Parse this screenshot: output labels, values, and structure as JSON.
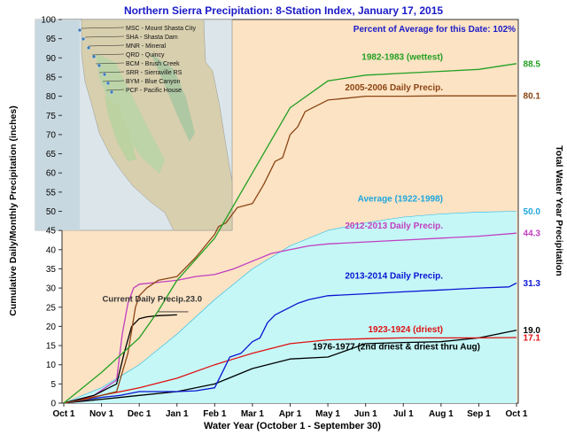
{
  "chart_data": {
    "type": "line",
    "title": "Northern Sierra Precipitation: 8-Station Index, January 17, 2015",
    "percent_label": "Percent of Average for this Date: 102%",
    "xlabel": "Water Year (October 1 - September 30)",
    "ylabel": "Cumulative Daily/Monthly Precipitation (inches)",
    "ylabel_right": "Total Water Year Precipitation",
    "ylim": [
      0,
      100
    ],
    "yticks": [
      0,
      5,
      10,
      15,
      20,
      25,
      30,
      35,
      40,
      45,
      50,
      55,
      60,
      65,
      70,
      75,
      80,
      85,
      90,
      95,
      100
    ],
    "x_ticks": [
      "Oct 1",
      "Nov 1",
      "Dec 1",
      "Jan 1",
      "Feb 1",
      "Mar 1",
      "Apr 1",
      "May 1",
      "Jun 1",
      "Jul 1",
      "Aug 1",
      "Sep 1",
      "Oct 1"
    ],
    "grid": false,
    "colors": {
      "plot_bg": "#fce3c4",
      "average_fill": "#c5f7f7"
    },
    "map_legend": [
      "MSC - Mount Shasta City",
      "SHA - Shasta Dam",
      "MNR - Mineral",
      "QRD - Quincy",
      "BCM - Brush Creek",
      "SRR - Sierraville RS",
      "BYM - Blue Canyon",
      "PCF - Pacific House"
    ],
    "series": [
      {
        "key": "wettest",
        "name": "1982-1983 (wettest)",
        "total": "88.5",
        "color": "#22a022",
        "points": [
          [
            0,
            0
          ],
          [
            1,
            8
          ],
          [
            2,
            17
          ],
          [
            2.5,
            24
          ],
          [
            3,
            32
          ],
          [
            4,
            43
          ],
          [
            5,
            60
          ],
          [
            6,
            77
          ],
          [
            7,
            84
          ],
          [
            8,
            85.5
          ],
          [
            9,
            86
          ],
          [
            10,
            86.5
          ],
          [
            11,
            87
          ],
          [
            12,
            88.5
          ]
        ]
      },
      {
        "key": "y2005",
        "name": "2005-2006 Daily Precip.",
        "total": "80.1",
        "color": "#8b4513",
        "points": [
          [
            0,
            0
          ],
          [
            0.6,
            1
          ],
          [
            1,
            2
          ],
          [
            1.4,
            3
          ],
          [
            1.7,
            13
          ],
          [
            1.9,
            25
          ],
          [
            2,
            28
          ],
          [
            2.2,
            30
          ],
          [
            2.5,
            32
          ],
          [
            3,
            33
          ],
          [
            3.5,
            38
          ],
          [
            4,
            44
          ],
          [
            4.1,
            46
          ],
          [
            4.3,
            47
          ],
          [
            4.6,
            51
          ],
          [
            5,
            52
          ],
          [
            5.3,
            57
          ],
          [
            5.6,
            63
          ],
          [
            5.8,
            64
          ],
          [
            6,
            70
          ],
          [
            6.2,
            72
          ],
          [
            6.4,
            76
          ],
          [
            6.6,
            77
          ],
          [
            6.8,
            78
          ],
          [
            7,
            79
          ],
          [
            7.5,
            79.5
          ],
          [
            8,
            80
          ],
          [
            9,
            80
          ],
          [
            10,
            80.1
          ],
          [
            12,
            80.1
          ]
        ]
      },
      {
        "key": "average",
        "name": "Average (1922-1998)",
        "total": "50.0",
        "color": "#22b8e6",
        "points": [
          [
            0,
            0
          ],
          [
            1,
            4
          ],
          [
            2,
            10
          ],
          [
            3,
            18
          ],
          [
            4,
            27
          ],
          [
            5,
            35
          ],
          [
            6,
            41
          ],
          [
            7,
            45
          ],
          [
            8,
            47
          ],
          [
            9,
            48.5
          ],
          [
            10,
            49.3
          ],
          [
            11,
            49.8
          ],
          [
            12,
            50
          ]
        ]
      },
      {
        "key": "y2012",
        "name": "2012-2013 Daily Precip.",
        "total": "44.3",
        "color": "#c040c0",
        "points": [
          [
            0,
            0
          ],
          [
            0.8,
            2
          ],
          [
            1.1,
            4
          ],
          [
            1.4,
            6
          ],
          [
            1.55,
            18
          ],
          [
            1.7,
            26
          ],
          [
            1.85,
            30
          ],
          [
            2,
            31
          ],
          [
            2.5,
            31.5
          ],
          [
            3,
            32
          ],
          [
            3.5,
            33
          ],
          [
            4,
            33.5
          ],
          [
            4.5,
            35
          ],
          [
            5,
            37
          ],
          [
            5.5,
            39
          ],
          [
            6,
            40
          ],
          [
            6.5,
            41
          ],
          [
            7,
            41.5
          ],
          [
            8,
            42
          ],
          [
            9,
            42.5
          ],
          [
            10,
            43
          ],
          [
            11,
            43.5
          ],
          [
            12,
            44.3
          ]
        ]
      },
      {
        "key": "y2013",
        "name": "2013-2014 Daily Precip.",
        "total": "31.3",
        "color": "#0a14d2",
        "points": [
          [
            0,
            0
          ],
          [
            1,
            1.5
          ],
          [
            1.5,
            2
          ],
          [
            2,
            3
          ],
          [
            3,
            3
          ],
          [
            3.5,
            3.2
          ],
          [
            4,
            4
          ],
          [
            4.2,
            8
          ],
          [
            4.4,
            12
          ],
          [
            4.7,
            13
          ],
          [
            5,
            16
          ],
          [
            5.2,
            17
          ],
          [
            5.4,
            21
          ],
          [
            5.6,
            23
          ],
          [
            5.8,
            24
          ],
          [
            6,
            25
          ],
          [
            6.2,
            26
          ],
          [
            6.5,
            27
          ],
          [
            7,
            28
          ],
          [
            8,
            28.5
          ],
          [
            9,
            29
          ],
          [
            10,
            29.5
          ],
          [
            11,
            30
          ],
          [
            11.8,
            30.3
          ],
          [
            12,
            31.3
          ]
        ]
      },
      {
        "key": "current",
        "name": "Current Daily Precip.",
        "total": "23.0",
        "color": "#000000",
        "points": [
          [
            0,
            0
          ],
          [
            0.8,
            2
          ],
          [
            1.1,
            3.5
          ],
          [
            1.4,
            5
          ],
          [
            1.6,
            13
          ],
          [
            1.8,
            20
          ],
          [
            2,
            22
          ],
          [
            2.2,
            22.5
          ],
          [
            2.5,
            22.8
          ],
          [
            3,
            23
          ]
        ]
      },
      {
        "key": "driest",
        "name": "1923-1924 (driest)",
        "total": "17.1",
        "color": "#e01010",
        "points": [
          [
            0,
            0
          ],
          [
            1,
            2
          ],
          [
            2,
            4
          ],
          [
            3,
            6.5
          ],
          [
            4,
            10
          ],
          [
            5,
            13
          ],
          [
            6,
            15.5
          ],
          [
            7,
            16.5
          ],
          [
            8,
            16.8
          ],
          [
            9,
            17
          ],
          [
            10,
            17
          ],
          [
            11,
            17
          ],
          [
            12,
            17.1
          ]
        ]
      },
      {
        "key": "y1976",
        "name": "1976-1977 (2nd driest & driest thru Aug)",
        "total": "19.0",
        "color": "#000000",
        "points": [
          [
            0,
            0
          ],
          [
            1,
            1
          ],
          [
            2,
            2
          ],
          [
            3,
            3
          ],
          [
            4,
            5
          ],
          [
            5,
            9
          ],
          [
            6,
            11.5
          ],
          [
            7,
            12
          ],
          [
            8,
            15.5
          ],
          [
            9,
            15.8
          ],
          [
            10,
            16
          ],
          [
            11,
            17
          ],
          [
            12,
            19
          ]
        ]
      }
    ]
  }
}
